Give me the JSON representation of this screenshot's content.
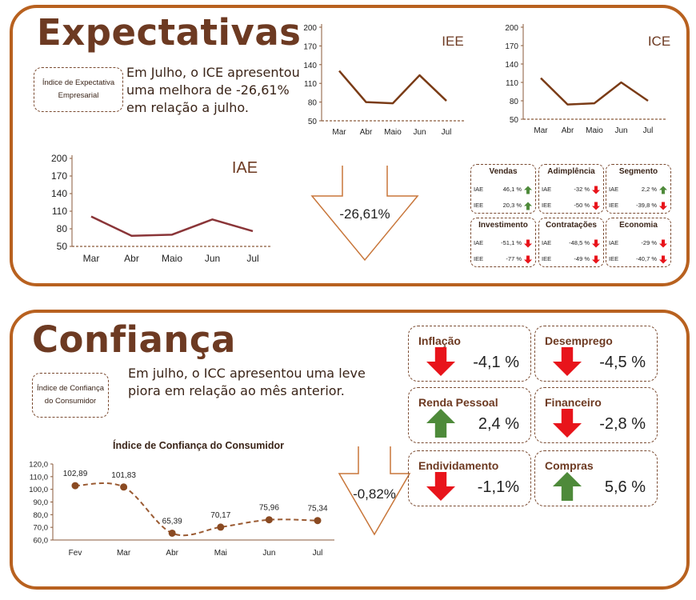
{
  "expectativas": {
    "title": "Expectativas",
    "pill": "Índice de Expectativa Empresarial",
    "description": "Em Julho, o ICE apresentou uma melhora de -26,61%  em relação a julho.",
    "change": "-26,61%"
  },
  "confianca": {
    "title": "Confiança",
    "pill": "Índice de Confiança do Consumidor",
    "description": "Em julho, o ICC apresentou uma leve piora em relação ao mês anterior.",
    "change": "-0,82%"
  },
  "colors": {
    "accent": "#b8611f",
    "title": "#6d3a22",
    "line": "#7a3b16",
    "down": "#e8141b",
    "up": "#4e8a3a"
  },
  "chart_data": [
    {
      "id": "iee",
      "type": "line",
      "title": "IEE",
      "categories": [
        "Mar",
        "Abr",
        "Maio",
        "Jun",
        "Jul"
      ],
      "values": [
        130,
        80,
        78,
        123,
        82
      ],
      "ylim": [
        50,
        200
      ],
      "yticks": [
        "200",
        "170",
        "140",
        "110",
        "80",
        "50"
      ]
    },
    {
      "id": "ice",
      "type": "line",
      "title": "ICE",
      "categories": [
        "Mar",
        "Abr",
        "Maio",
        "Jun",
        "Jul"
      ],
      "values": [
        117,
        74,
        76,
        110,
        80
      ],
      "ylim": [
        50,
        200
      ],
      "yticks": [
        "200",
        "170",
        "140",
        "110",
        "80",
        "50"
      ]
    },
    {
      "id": "iae",
      "type": "line",
      "title": "IAE",
      "categories": [
        "Mar",
        "Abr",
        "Maio",
        "Jun",
        "Jul"
      ],
      "values": [
        101,
        68,
        70,
        96,
        76
      ],
      "ylim": [
        50,
        200
      ],
      "yticks": [
        "200",
        "170",
        "140",
        "110",
        "80",
        "50"
      ]
    },
    {
      "id": "icc",
      "type": "line",
      "title": "Índice de Confiança do Consumidor",
      "categories": [
        "Fev",
        "Mar",
        "Abr",
        "Mai",
        "Jun",
        "Jul"
      ],
      "values": [
        102.89,
        101.83,
        65.39,
        70.17,
        75.96,
        75.34
      ],
      "labels": [
        "102,89",
        "101,83",
        "65,39",
        "70,17",
        "75,96",
        "75,34"
      ],
      "ylim": [
        60,
        120
      ],
      "yticks": [
        "120,0",
        "110,0",
        "100,0",
        "90,0",
        "80,0",
        "70,0",
        "60,0"
      ]
    }
  ],
  "segments": [
    {
      "name": "Vendas",
      "iae": "46,1 %",
      "iae_dir": "up",
      "iee": "20,3 %",
      "iee_dir": "up"
    },
    {
      "name": "Adimplência",
      "iae": "-32 %",
      "iae_dir": "down",
      "iee": "-50 %",
      "iee_dir": "down"
    },
    {
      "name": "Segmento",
      "iae": "2,2 %",
      "iae_dir": "up",
      "iee": "-39,8 %",
      "iee_dir": "down"
    },
    {
      "name": "Investimento",
      "iae": "-51,1 %",
      "iae_dir": "down",
      "iee": "-77 %",
      "iee_dir": "down"
    },
    {
      "name": "Contratações",
      "iae": "-48,5 %",
      "iae_dir": "down",
      "iee": "-49 %",
      "iee_dir": "down"
    },
    {
      "name": "Economia",
      "iae": "-29 %",
      "iae_dir": "down",
      "iee": "-40,7 %",
      "iee_dir": "down"
    }
  ],
  "segment_labels": {
    "iae": "IAE",
    "iee": "IEE"
  },
  "indicators": [
    {
      "name": "Inflação",
      "value": "-4,1 %",
      "dir": "down"
    },
    {
      "name": "Desemprego",
      "value": "-4,5 %",
      "dir": "down"
    },
    {
      "name": "Renda Pessoal",
      "value": "2,4 %",
      "dir": "up"
    },
    {
      "name": "Financeiro",
      "value": "-2,8 %",
      "dir": "down"
    },
    {
      "name": "Endividamento",
      "value": "-1,1%",
      "dir": "down"
    },
    {
      "name": "Compras",
      "value": "5,6 %",
      "dir": "up"
    }
  ]
}
